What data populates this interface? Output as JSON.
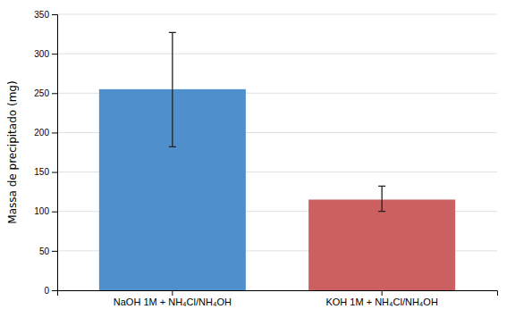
{
  "chart_data": {
    "type": "bar",
    "categories": [
      "NaOH 1M + NH₄Cl/NH₄OH",
      "KOH 1M + NH₄Cl/NH₄OH"
    ],
    "values": [
      255,
      115
    ],
    "errors_upper": [
      72,
      17
    ],
    "errors_lower": [
      73,
      15
    ],
    "colors": [
      "#4f8fcc",
      "#cc5f5f"
    ],
    "ylabel": "Massa de precipitado (mg)",
    "ylim": [
      0,
      350
    ],
    "yticks": [
      0,
      50,
      100,
      150,
      200,
      250,
      300,
      350
    ],
    "grid": true
  }
}
